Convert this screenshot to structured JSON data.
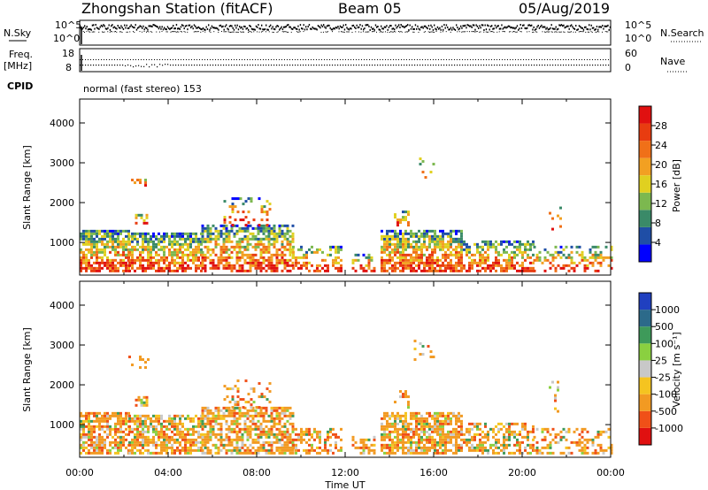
{
  "header": {
    "station": "Zhongshan Station (fitACF)",
    "beam": "Beam 05",
    "date": "05/Aug/2019"
  },
  "top_panels": {
    "nsky_label": "N.Sky",
    "nsky_ticks": [
      "10^5",
      "10^0"
    ],
    "nsearch_label": "N.Search",
    "nsearch_ticks": [
      "10^5",
      "10^0"
    ],
    "freq_label_1": "Freq.",
    "freq_label_2": "[MHz]",
    "freq_ticks": [
      "18",
      "8"
    ],
    "nave_label": "Nave",
    "nave_ticks": [
      "60",
      "0"
    ],
    "cpid_label": "CPID",
    "cpid_text": "normal (fast stereo) 153"
  },
  "colors": {
    "power": [
      "#0000ff",
      "#1f4ea6",
      "#3a8a68",
      "#7cb84f",
      "#e0d020",
      "#f2a022",
      "#f07018",
      "#e83c10",
      "#e01010"
    ],
    "velocity": [
      "#e01010",
      "#f05018",
      "#f29a22",
      "#f5c420",
      "#c8c8c8",
      "#8ad040",
      "#3e9a5a",
      "#2c6a8a",
      "#2040c0"
    ]
  },
  "chart_data": [
    {
      "type": "heatmap",
      "name": "Power",
      "ylabel": "Slant Range [km]",
      "ylim": [
        180,
        4600
      ],
      "yticks": [
        1000,
        2000,
        3000,
        4000
      ],
      "xlim": [
        0,
        24
      ],
      "colorbar_label": "Power [dB]",
      "colorbar_range": [
        0,
        32
      ],
      "colorbar_ticks": [
        4,
        8,
        12,
        16,
        20,
        24,
        28
      ]
    },
    {
      "type": "heatmap",
      "name": "Velocity",
      "ylabel": "Slant Range [km]",
      "ylim": [
        180,
        4600
      ],
      "yticks": [
        1000,
        2000,
        3000,
        4000
      ],
      "xlim": [
        0,
        24
      ],
      "colorbar_label": "Velocity [m s⁻¹]",
      "colorbar_ticks": [
        "-1000",
        "-500",
        "-100",
        "-25",
        "25",
        "100",
        "500",
        "1000"
      ]
    }
  ],
  "xaxis": {
    "ticks": [
      "00:00",
      "04:00",
      "08:00",
      "12:00",
      "16:00",
      "20:00",
      "00:00"
    ],
    "label": "Time UT"
  }
}
